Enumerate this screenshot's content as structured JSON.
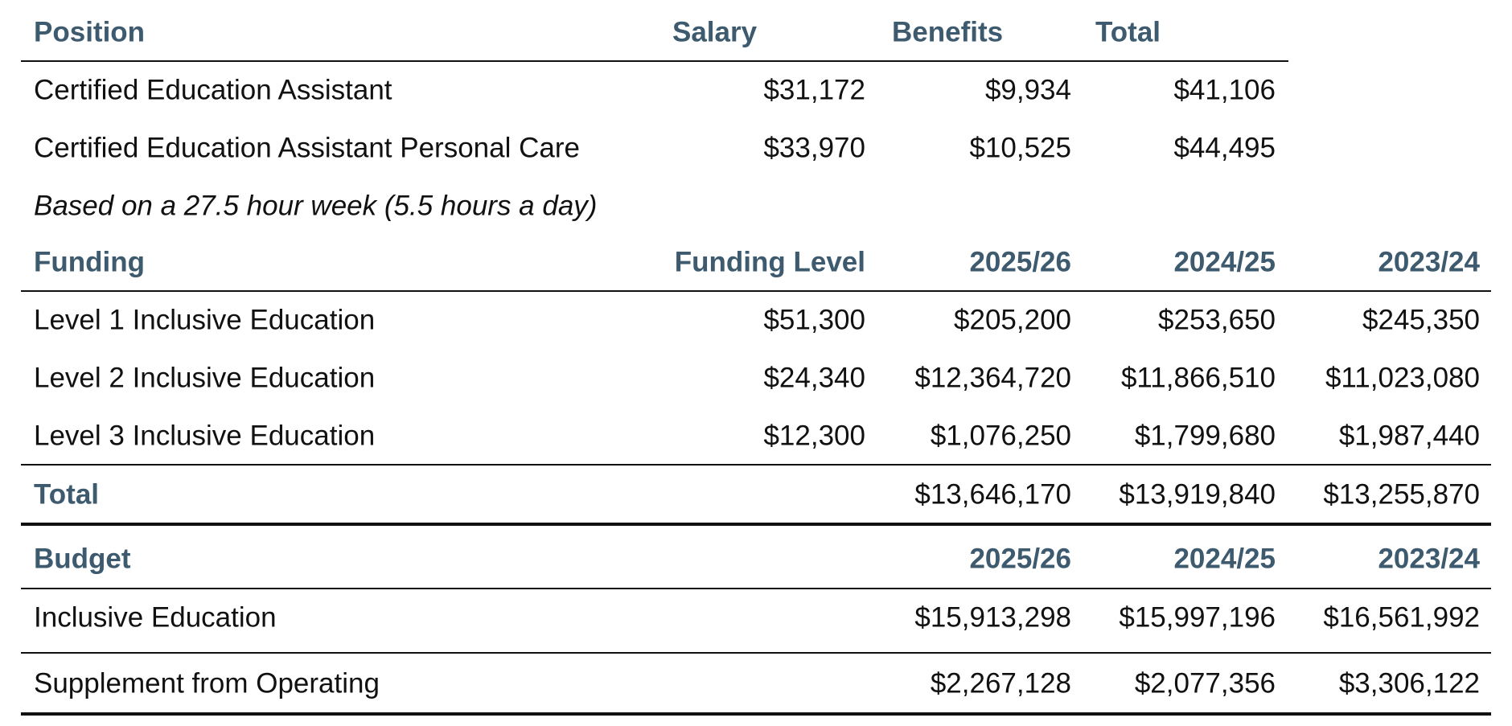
{
  "position_table": {
    "headers": [
      "Position",
      "Salary",
      "Benefits",
      "Total"
    ],
    "rows": [
      [
        "Certified Education Assistant",
        "$31,172",
        "$9,934",
        "$41,106"
      ],
      [
        "Certified Education Assistant Personal Care",
        "$33,970",
        "$10,525",
        "$44,495"
      ]
    ],
    "note": "Based on a 27.5 hour week (5.5 hours a day)"
  },
  "funding_table": {
    "headers": [
      "Funding",
      "Funding Level",
      "2025/26",
      "2024/25",
      "2023/24"
    ],
    "rows": [
      [
        "Level 1 Inclusive Education",
        "$51,300",
        "$205,200",
        "$253,650",
        "$245,350"
      ],
      [
        "Level 2 Inclusive Education",
        "$24,340",
        "$12,364,720",
        "$11,866,510",
        "$11,023,080"
      ],
      [
        "Level 3 Inclusive Education",
        "$12,300",
        "$1,076,250",
        "$1,799,680",
        "$1,987,440"
      ]
    ],
    "total": {
      "label": "Total",
      "values": [
        "$13,646,170",
        "$13,919,840",
        "$13,255,870"
      ]
    }
  },
  "budget_table": {
    "headers": [
      "Budget",
      "2025/26",
      "2024/25",
      "2023/24"
    ],
    "rows": [
      [
        "Inclusive Education",
        "$15,913,298",
        "$15,997,196",
        "$16,561,992"
      ],
      [
        "Supplement from Operating",
        "$2,267,128",
        "$2,077,356",
        "$3,306,122"
      ]
    ]
  }
}
